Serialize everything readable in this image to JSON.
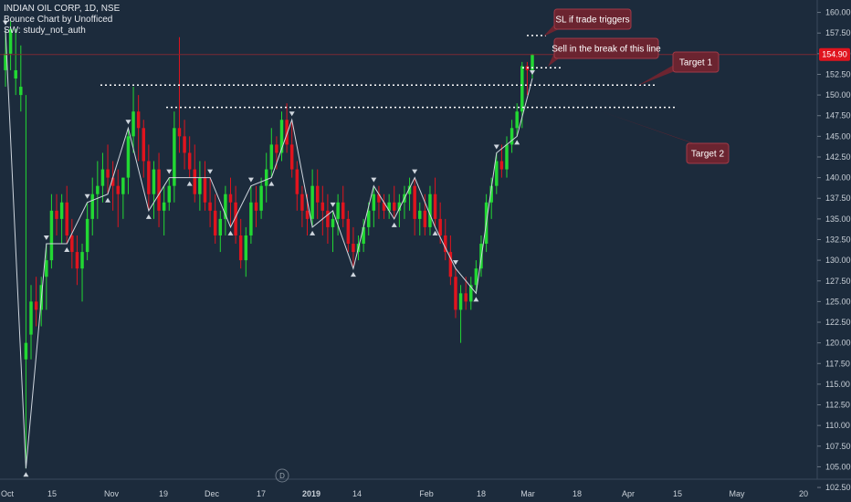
{
  "legend": {
    "symbol_line": "INDIAN OIL CORP, 1D, NSE",
    "indicator_line": "Bounce Chart by Unofficed",
    "study_line": "SW: study_not_auth"
  },
  "annotations": {
    "sl": "SL if trade triggers",
    "sell": "Sell in the break of this line",
    "target1": "Target 1",
    "target2": "Target 2"
  },
  "price_badge": "154.90",
  "event_marker": "D",
  "colors": {
    "background": "#1c2b3c",
    "up": "#22d833",
    "down": "#e0141e",
    "annotation_bg": "#6b2430",
    "annotation_border": "#a13a47",
    "badge": "#e0141e",
    "text": "#e6e9ee",
    "axis_text": "#c9d0d8"
  },
  "chart_data": {
    "type": "candlestick",
    "y_axis": {
      "range": [
        103.5,
        161.5
      ],
      "ticks": [
        "160.00",
        "157.50",
        "155.00",
        "152.50",
        "150.00",
        "147.50",
        "145.00",
        "142.50",
        "140.00",
        "137.50",
        "135.00",
        "132.50",
        "130.00",
        "127.50",
        "125.00",
        "122.50",
        "120.00",
        "117.50",
        "115.00",
        "112.50",
        "110.00",
        "107.50",
        "105.00",
        "102.50"
      ]
    },
    "x_axis": {
      "labels": [
        "Oct",
        "15",
        "Nov",
        "19",
        "Dec",
        "17",
        "2019",
        "14",
        "Feb",
        "18",
        "Mar",
        "18",
        "Apr",
        "15",
        "May",
        "20"
      ]
    },
    "candles": [
      [
        153,
        158,
        151,
        155
      ],
      [
        155,
        159,
        153,
        158
      ],
      [
        152,
        158,
        150,
        153
      ],
      [
        150,
        156,
        148,
        151
      ],
      [
        118,
        150,
        104.8,
        120
      ],
      [
        121,
        127,
        118,
        125
      ],
      [
        125,
        128,
        122,
        124
      ],
      [
        124,
        128,
        122,
        127
      ],
      [
        128,
        132,
        124,
        130
      ],
      [
        130,
        138,
        129,
        136
      ],
      [
        136,
        138,
        133,
        135
      ],
      [
        135,
        138,
        132,
        137
      ],
      [
        137,
        139,
        132,
        133
      ],
      [
        133,
        135,
        129,
        131
      ],
      [
        131,
        133,
        127,
        129
      ],
      [
        129,
        132,
        125,
        131
      ],
      [
        131,
        137,
        130,
        135
      ],
      [
        135,
        140,
        133,
        138
      ],
      [
        138,
        142,
        135,
        139
      ],
      [
        139,
        143,
        137,
        141
      ],
      [
        141,
        144,
        138,
        140
      ],
      [
        140,
        142,
        136,
        139
      ],
      [
        139,
        141,
        134,
        138
      ],
      [
        138,
        140,
        135,
        140
      ],
      [
        140,
        146,
        138,
        145
      ],
      [
        145,
        151,
        143,
        148
      ],
      [
        148,
        150,
        142,
        146
      ],
      [
        146,
        147,
        140,
        142
      ],
      [
        142,
        144,
        136,
        138
      ],
      [
        138,
        142,
        135,
        141
      ],
      [
        141,
        143,
        134,
        136
      ],
      [
        136,
        139,
        133,
        137
      ],
      [
        137,
        140,
        136,
        139
      ],
      [
        139,
        148,
        137,
        146
      ],
      [
        146,
        157,
        143,
        145
      ],
      [
        145,
        147,
        141,
        143
      ],
      [
        143,
        145,
        140,
        141
      ],
      [
        141,
        144,
        137,
        138
      ],
      [
        138,
        142,
        136,
        140
      ],
      [
        140,
        142,
        136,
        137
      ],
      [
        137,
        140,
        134,
        136
      ],
      [
        136,
        138,
        132,
        133
      ],
      [
        133,
        136,
        131,
        135
      ],
      [
        135,
        139,
        133,
        138
      ],
      [
        138,
        140,
        134,
        137
      ],
      [
        137,
        139,
        132,
        133
      ],
      [
        133,
        135,
        129,
        130
      ],
      [
        130,
        134,
        128,
        133
      ],
      [
        133,
        139,
        132,
        137
      ],
      [
        137,
        139,
        134,
        136
      ],
      [
        136,
        140,
        135,
        139
      ],
      [
        139,
        143,
        137,
        141
      ],
      [
        141,
        146,
        140,
        144
      ],
      [
        144,
        145,
        141,
        143
      ],
      [
        143,
        148,
        142,
        147
      ],
      [
        147,
        149,
        143,
        144
      ],
      [
        144,
        147,
        140,
        141
      ],
      [
        141,
        142,
        136,
        138
      ],
      [
        138,
        139,
        134,
        136
      ],
      [
        136,
        138,
        133,
        135
      ],
      [
        135,
        141,
        134,
        139
      ],
      [
        139,
        141,
        135,
        137
      ],
      [
        137,
        139,
        133,
        136
      ],
      [
        136,
        138,
        132,
        134
      ],
      [
        134,
        136,
        131,
        135
      ],
      [
        135,
        138,
        133,
        137
      ],
      [
        137,
        139,
        134,
        135
      ],
      [
        135,
        136,
        131,
        132
      ],
      [
        132,
        134,
        129,
        131
      ],
      [
        131,
        133,
        130,
        132
      ],
      [
        132,
        135,
        131,
        134
      ],
      [
        134,
        137,
        133,
        136
      ],
      [
        136,
        139,
        134,
        138
      ],
      [
        138,
        139,
        135,
        137
      ],
      [
        137,
        138,
        135,
        136
      ],
      [
        136,
        138,
        135,
        137
      ],
      [
        137,
        139,
        135,
        136
      ],
      [
        136,
        138,
        134,
        137
      ],
      [
        137,
        139,
        135,
        138
      ],
      [
        138,
        140,
        136,
        139
      ],
      [
        139,
        140,
        133,
        135
      ],
      [
        135,
        137,
        133,
        136
      ],
      [
        136,
        138,
        133,
        134
      ],
      [
        134,
        139,
        133,
        138
      ],
      [
        138,
        140,
        134,
        135
      ],
      [
        135,
        137,
        132,
        133
      ],
      [
        133,
        135,
        130,
        131
      ],
      [
        131,
        133,
        127,
        128
      ],
      [
        128,
        129,
        123,
        124
      ],
      [
        124,
        127,
        120,
        126
      ],
      [
        126,
        128,
        124,
        125
      ],
      [
        125,
        128,
        124,
        127
      ],
      [
        127,
        130,
        126,
        129
      ],
      [
        129,
        133,
        128,
        132
      ],
      [
        132,
        138,
        131,
        137
      ],
      [
        137,
        140,
        135,
        139
      ],
      [
        139,
        143,
        138,
        142
      ],
      [
        142,
        144,
        140,
        141
      ],
      [
        141,
        145,
        140,
        144
      ],
      [
        144,
        147,
        143,
        146
      ],
      [
        146,
        149,
        145,
        148
      ],
      [
        148,
        154,
        146,
        153.5
      ],
      [
        153.5,
        154,
        150,
        153
      ],
      [
        153,
        155,
        152,
        154.9
      ]
    ],
    "levels": {
      "stop_loss": 157.2,
      "sell_trigger": 153.3,
      "target_1": 151.2,
      "target_2": 148.5,
      "last_price": 154.9
    }
  }
}
